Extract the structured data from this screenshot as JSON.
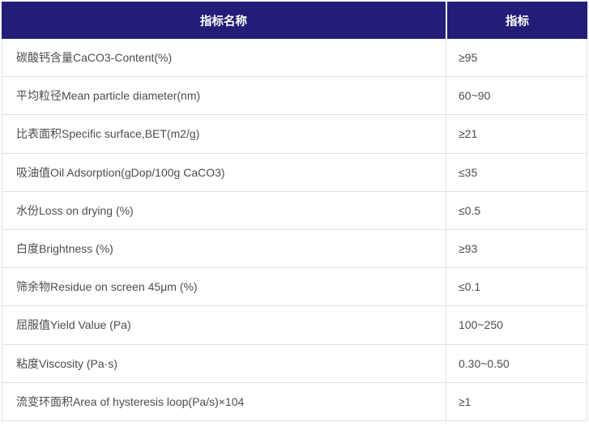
{
  "table": {
    "columns": [
      {
        "label": "指标名称"
      },
      {
        "label": "指标"
      }
    ],
    "rows": [
      {
        "name": "碳酸钙含量CaCO3-Content(%)",
        "value": "≥95"
      },
      {
        "name": "平均粒径Mean particle diameter(nm)",
        "value": "60~90"
      },
      {
        "name": "比表面积Specific surface,BET(m2/g)",
        "value": "≥21"
      },
      {
        "name": "吸油值Oil Adsorption(gDop/100g CaCO3)",
        "value": "≤35"
      },
      {
        "name": "水份Loss on drying (%)",
        "value": "≤0.5"
      },
      {
        "name": "白度Brightness (%)",
        "value": "≥93"
      },
      {
        "name": "筛余物Residue on screen 45μm (%)",
        "value": "≤0.1"
      },
      {
        "name": "屈服值Yield Value (Pa)",
        "value": "100~250"
      },
      {
        "name": "粘度Viscosity (Pa·s)",
        "value": "0.30~0.50"
      },
      {
        "name": "流变环面积Area of hysteresis loop(Pa/s)×104",
        "value": "≥1"
      }
    ],
    "colors": {
      "header_bg": "#221e78",
      "header_text": "#ffffff",
      "border": "#e2e2e2",
      "body_text": "#4d4d4d"
    }
  }
}
